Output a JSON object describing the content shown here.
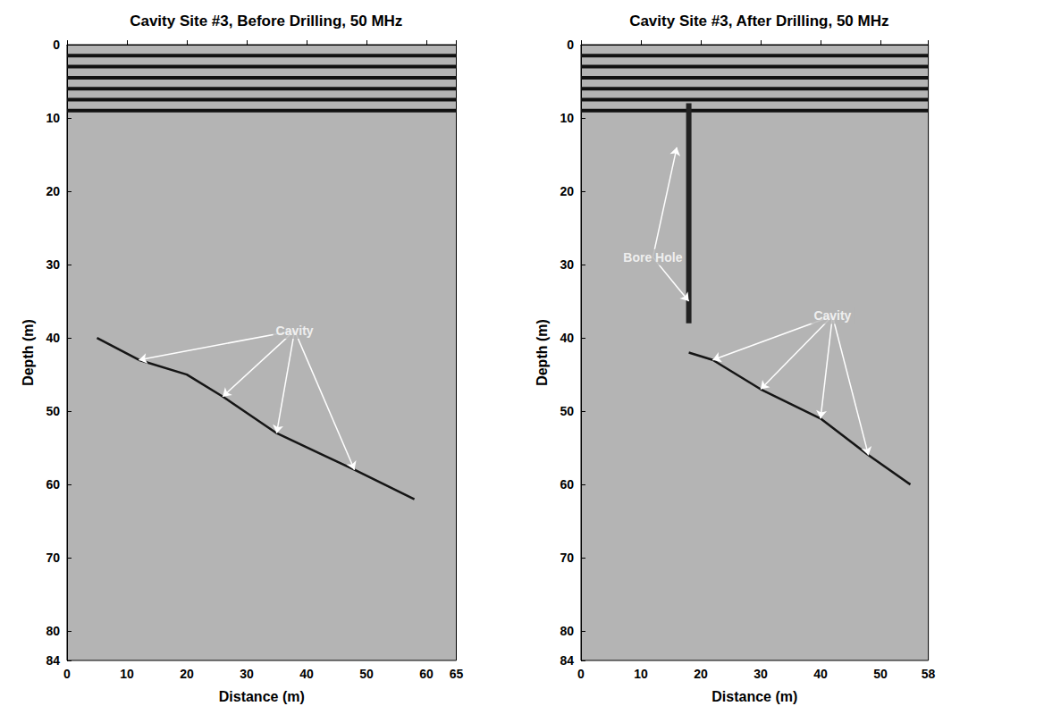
{
  "chart_data": [
    {
      "type": "radargram",
      "title": "Cavity Site #3, Before Drilling, 50 MHz",
      "xlabel": "Distance (m)",
      "ylabel": "Depth (m)",
      "xlim": [
        0,
        65
      ],
      "xticks": [
        0,
        10,
        20,
        30,
        40,
        50,
        60
      ],
      "ylim": [
        0,
        84
      ],
      "yticks": [
        0,
        10,
        20,
        30,
        40,
        50,
        60,
        70,
        80
      ],
      "surface_bands": [
        1.5,
        3,
        4.5,
        6,
        7.5,
        9
      ],
      "reflector": {
        "x": [
          5,
          12,
          20,
          26,
          35,
          48,
          58
        ],
        "y": [
          40,
          43,
          45,
          48,
          53,
          58,
          62
        ]
      },
      "annotations": [
        {
          "text": "Cavity",
          "x": 38,
          "y": 39,
          "targets": [
            [
              12,
              43
            ],
            [
              26,
              48
            ],
            [
              35,
              53
            ],
            [
              48,
              58
            ]
          ]
        }
      ]
    },
    {
      "type": "radargram",
      "title": "Cavity Site #3, After Drilling, 50 MHz",
      "xlabel": "Distance (m)",
      "ylabel": "Depth (m)",
      "xlim": [
        0,
        58
      ],
      "xticks": [
        0,
        10,
        20,
        30,
        40,
        50
      ],
      "ylim": [
        0,
        84
      ],
      "yticks": [
        0,
        10,
        20,
        30,
        40,
        50,
        60,
        70,
        80
      ],
      "surface_bands": [
        1.5,
        3,
        4.5,
        6,
        7.5,
        9
      ],
      "reflector": {
        "x": [
          18,
          22,
          30,
          40,
          48,
          55
        ],
        "y": [
          42,
          43,
          47,
          51,
          56,
          60
        ]
      },
      "borehole": {
        "x": [
          18,
          18
        ],
        "y": [
          8,
          38
        ]
      },
      "annotations": [
        {
          "text": "Bore Hole",
          "x": 12,
          "y": 29,
          "targets": [
            [
              16,
              14
            ],
            [
              18,
              35
            ]
          ]
        },
        {
          "text": "Cavity",
          "x": 42,
          "y": 37,
          "targets": [
            [
              22,
              43
            ],
            [
              30,
              47
            ],
            [
              40,
              51
            ],
            [
              48,
              56
            ]
          ]
        }
      ]
    }
  ]
}
